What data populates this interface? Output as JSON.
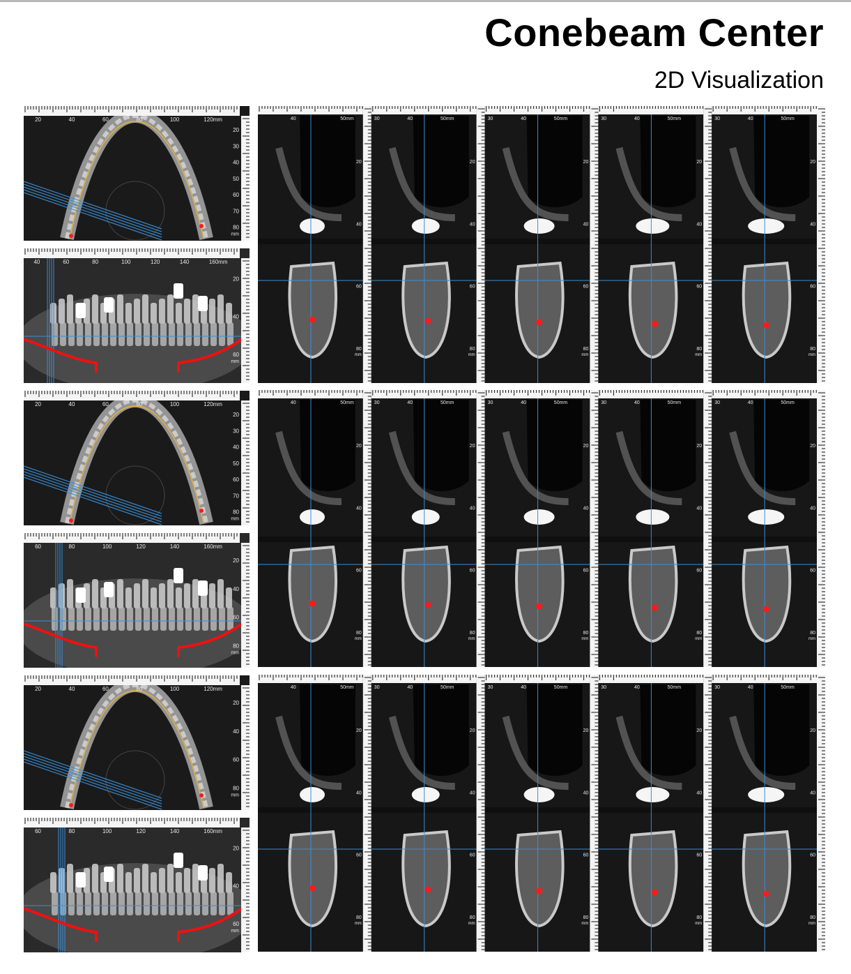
{
  "header": {
    "title": "Conebeam Center",
    "subtitle": "2D Visualization"
  },
  "colors": {
    "background": "#ffffff",
    "image_bg": "#161616",
    "crosshair": "#3a8fd6",
    "nerve_marker": "#ff1a1a",
    "canal_trace": "#e6b23a",
    "nerve_trace": "#ee1111"
  },
  "rows": [
    {
      "axial": {
        "top_ticks": [
          "20",
          "40",
          "60",
          "80",
          "100",
          "120mm"
        ],
        "right_ticks": [
          "20",
          "30",
          "40",
          "50",
          "60",
          "70",
          "80"
        ],
        "unit": "mm"
      },
      "panoramic": {
        "top_ticks": [
          "40",
          "60",
          "80",
          "100",
          "120",
          "140",
          "160mm"
        ],
        "right_ticks": [
          "20",
          "40",
          "60"
        ],
        "unit": "mm"
      },
      "cross_sections": [
        {
          "top_ticks": [
            "40",
            "50mm"
          ],
          "right_ticks": [
            "20",
            "40",
            "60",
            "80"
          ],
          "unit": "mm"
        },
        {
          "top_ticks": [
            "30",
            "40",
            "50mm"
          ],
          "right_ticks": [
            "20",
            "40",
            "60",
            "80"
          ],
          "unit": "mm"
        },
        {
          "top_ticks": [
            "30",
            "40",
            "50mm"
          ],
          "right_ticks": [
            "20",
            "40",
            "60",
            "80"
          ],
          "unit": "mm"
        },
        {
          "top_ticks": [
            "30",
            "40",
            "50mm"
          ],
          "right_ticks": [
            "20",
            "40",
            "60",
            "80"
          ],
          "unit": "mm"
        },
        {
          "top_ticks": [
            "30",
            "40",
            "50mm"
          ],
          "right_ticks": [
            "20",
            "40",
            "60",
            "80"
          ],
          "unit": "mm"
        }
      ]
    },
    {
      "axial": {
        "top_ticks": [
          "20",
          "40",
          "60",
          "80",
          "100",
          "120mm"
        ],
        "right_ticks": [
          "20",
          "30",
          "40",
          "50",
          "60",
          "70",
          "80"
        ],
        "unit": "mm"
      },
      "panoramic": {
        "top_ticks": [
          "60",
          "80",
          "100",
          "120",
          "140",
          "160mm"
        ],
        "right_ticks": [
          "20",
          "40",
          "60",
          "80"
        ],
        "unit": "mm"
      },
      "cross_sections": [
        {
          "top_ticks": [
            "40",
            "50mm"
          ],
          "right_ticks": [
            "20",
            "40",
            "60",
            "80"
          ],
          "unit": "mm"
        },
        {
          "top_ticks": [
            "30",
            "40",
            "50mm"
          ],
          "right_ticks": [
            "20",
            "40",
            "60",
            "80"
          ],
          "unit": "mm"
        },
        {
          "top_ticks": [
            "30",
            "40",
            "50mm"
          ],
          "right_ticks": [
            "20",
            "40",
            "60",
            "80"
          ],
          "unit": "mm"
        },
        {
          "top_ticks": [
            "30",
            "40",
            "50mm"
          ],
          "right_ticks": [
            "20",
            "40",
            "60",
            "80"
          ],
          "unit": "mm"
        },
        {
          "top_ticks": [
            "30",
            "40",
            "50mm"
          ],
          "right_ticks": [
            "20",
            "40",
            "60",
            "80"
          ],
          "unit": "mm"
        }
      ]
    },
    {
      "axial": {
        "top_ticks": [
          "20",
          "40",
          "60",
          "80",
          "100",
          "120mm"
        ],
        "right_ticks": [
          "20",
          "40",
          "60",
          "80"
        ],
        "unit": "mm"
      },
      "panoramic": {
        "top_ticks": [
          "60",
          "80",
          "100",
          "120",
          "140",
          "160mm"
        ],
        "right_ticks": [
          "20",
          "40",
          "60"
        ],
        "unit": "mm"
      },
      "cross_sections": [
        {
          "top_ticks": [
            "40",
            "50mm"
          ],
          "right_ticks": [
            "20",
            "40",
            "60",
            "80"
          ],
          "unit": "mm"
        },
        {
          "top_ticks": [
            "30",
            "40",
            "50mm"
          ],
          "right_ticks": [
            "20",
            "40",
            "60",
            "80"
          ],
          "unit": "mm"
        },
        {
          "top_ticks": [
            "30",
            "40",
            "50mm"
          ],
          "right_ticks": [
            "20",
            "40",
            "60",
            "80"
          ],
          "unit": "mm"
        },
        {
          "top_ticks": [
            "30",
            "40",
            "50mm"
          ],
          "right_ticks": [
            "20",
            "40",
            "60",
            "80"
          ],
          "unit": "mm"
        },
        {
          "top_ticks": [
            "30",
            "40",
            "50mm"
          ],
          "right_ticks": [
            "20",
            "40",
            "60",
            "80"
          ],
          "unit": "mm"
        }
      ]
    }
  ]
}
